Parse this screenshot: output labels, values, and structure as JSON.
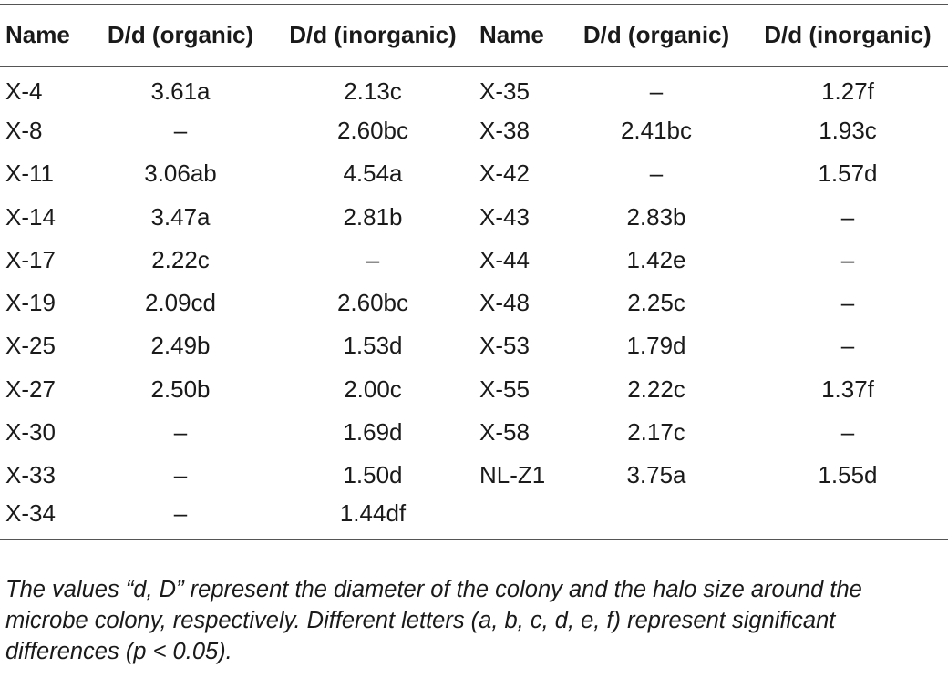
{
  "table": {
    "headers": [
      "Name",
      "D/d (organic)",
      "D/d (inorganic)",
      "Name",
      "D/d (organic)",
      "D/d (inorganic)"
    ],
    "rows": [
      [
        "X-4",
        "3.61a",
        "2.13c",
        "X-35",
        "–",
        "1.27f"
      ],
      [
        "X-8",
        "–",
        "2.60bc",
        "X-38",
        "2.41bc",
        "1.93c"
      ],
      [
        "X-11",
        "3.06ab",
        "4.54a",
        "X-42",
        "–",
        "1.57d"
      ],
      [
        "X-14",
        "3.47a",
        "2.81b",
        "X-43",
        "2.83b",
        "–"
      ],
      [
        "X-17",
        "2.22c",
        "–",
        "X-44",
        "1.42e",
        "–"
      ],
      [
        "X-19",
        "2.09cd",
        "2.60bc",
        "X-48",
        "2.25c",
        "–"
      ],
      [
        "X-25",
        "2.49b",
        "1.53d",
        "X-53",
        "1.79d",
        "–"
      ],
      [
        "X-27",
        "2.50b",
        "2.00c",
        "X-55",
        "2.22c",
        "1.37f"
      ],
      [
        "X-30",
        "–",
        "1.69d",
        "X-58",
        "2.17c",
        "–"
      ],
      [
        "X-33",
        "–",
        "1.50d",
        "NL-Z1",
        "3.75a",
        "1.55d"
      ],
      [
        "X-34",
        "–",
        "1.44df",
        "",
        "",
        ""
      ]
    ]
  },
  "footnote": "The values “d, D” represent the diameter of the colony and the halo size around the microbe colony, respectively. Different letters (a, b, c, d, e, f) represent significant differences (p < 0.05)."
}
